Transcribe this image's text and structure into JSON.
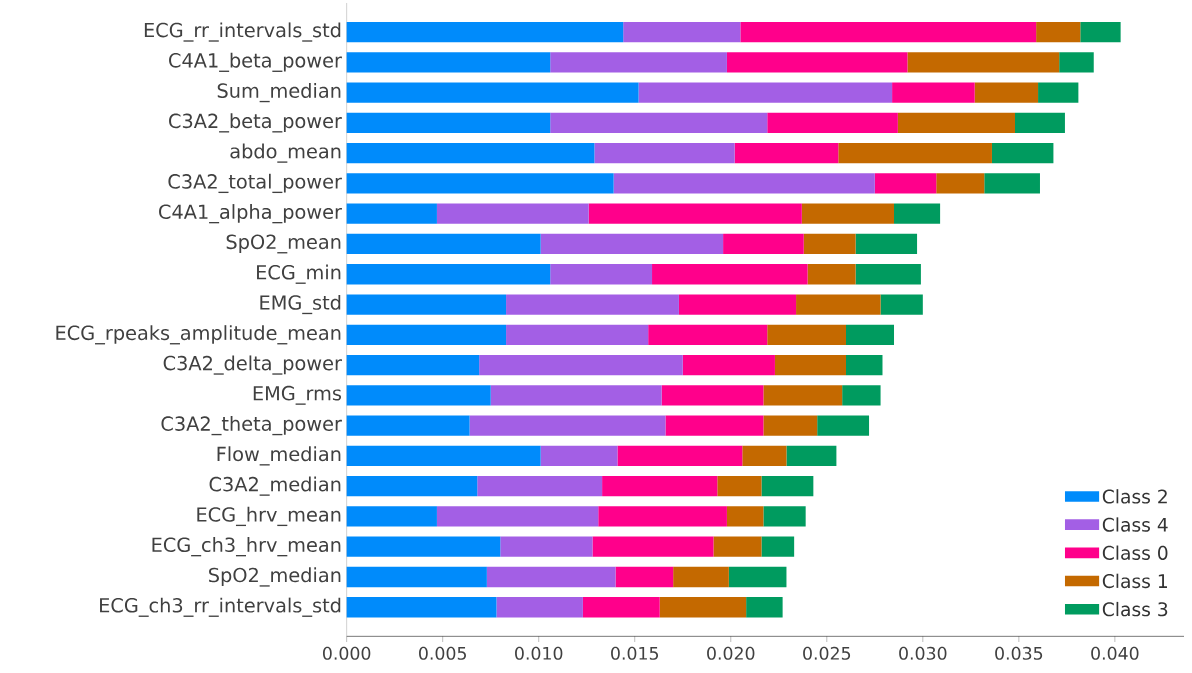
{
  "chart_data": {
    "type": "bar",
    "orientation": "horizontal",
    "stacked": true,
    "legend": "bottom right",
    "categories": [
      "ECG_rr_intervals_std",
      "C4A1_beta_power",
      "Sum_median",
      "C3A2_beta_power",
      "abdo_mean",
      "C3A2_total_power",
      "C4A1_alpha_power",
      "SpO2_mean",
      "ECG_min",
      "EMG_std",
      "ECG_rpeaks_amplitude_mean",
      "C3A2_delta_power",
      "EMG_rms",
      "C3A2_theta_power",
      "Flow_median",
      "C3A2_median",
      "ECG_hrv_mean",
      "ECG_ch3_hrv_mean",
      "SpO2_median",
      "ECG_ch3_rr_intervals_std"
    ],
    "series": [
      {
        "name": "Class 2",
        "color": "#008bfb",
        "values": [
          0.0144,
          0.0106,
          0.0152,
          0.0106,
          0.0129,
          0.0139,
          0.0047,
          0.0101,
          0.0106,
          0.0083,
          0.0083,
          0.0069,
          0.0075,
          0.0064,
          0.0101,
          0.0068,
          0.0047,
          0.008,
          0.0073,
          0.0078
        ]
      },
      {
        "name": "Class 4",
        "color": "#a35fe5",
        "values": [
          0.0061,
          0.0092,
          0.0132,
          0.0113,
          0.0073,
          0.0136,
          0.0079,
          0.0095,
          0.0053,
          0.009,
          0.0074,
          0.0106,
          0.0089,
          0.0102,
          0.004,
          0.0065,
          0.0084,
          0.0048,
          0.0067,
          0.0045
        ]
      },
      {
        "name": "Class 0",
        "color": "#ff008b",
        "values": [
          0.0154,
          0.0094,
          0.0043,
          0.0068,
          0.0054,
          0.0032,
          0.0111,
          0.0042,
          0.0081,
          0.0061,
          0.0062,
          0.0048,
          0.0053,
          0.0051,
          0.0065,
          0.006,
          0.0067,
          0.0063,
          0.003,
          0.004
        ]
      },
      {
        "name": "Class 1",
        "color": "#c46900",
        "values": [
          0.0023,
          0.0079,
          0.0033,
          0.0061,
          0.008,
          0.0025,
          0.0048,
          0.0027,
          0.0025,
          0.0044,
          0.0041,
          0.0037,
          0.0041,
          0.0028,
          0.0023,
          0.0023,
          0.0019,
          0.0025,
          0.0029,
          0.0045
        ]
      },
      {
        "name": "Class 3",
        "color": "#009b5f",
        "values": [
          0.0021,
          0.0018,
          0.0021,
          0.0026,
          0.0032,
          0.0029,
          0.0024,
          0.0032,
          0.0034,
          0.0022,
          0.0025,
          0.0019,
          0.002,
          0.0027,
          0.0026,
          0.0027,
          0.0022,
          0.0017,
          0.003,
          0.0019
        ]
      }
    ],
    "xlim": [
      0,
      0.0436
    ],
    "xticks": [
      {
        "value": 0,
        "label": "0.000"
      },
      {
        "value": 0.005,
        "label": "0.005"
      },
      {
        "value": 0.01,
        "label": "0.010"
      },
      {
        "value": 0.015,
        "label": "0.015"
      },
      {
        "value": 0.02,
        "label": "0.020"
      },
      {
        "value": 0.025,
        "label": "0.025"
      },
      {
        "value": 0.03,
        "label": "0.030"
      },
      {
        "value": 0.035,
        "label": "0.035"
      },
      {
        "value": 0.04,
        "label": "0.040"
      }
    ]
  }
}
